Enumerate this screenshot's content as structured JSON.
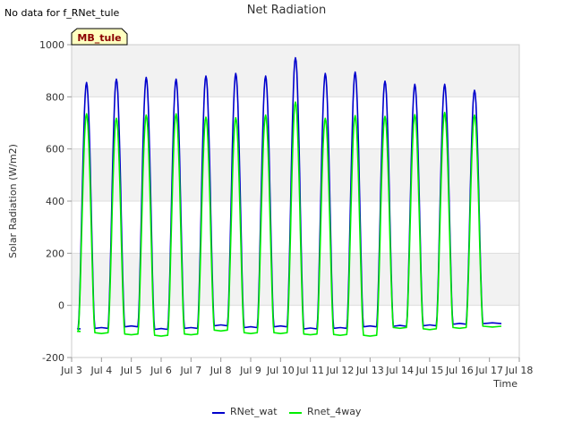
{
  "chart_data": {
    "type": "line",
    "title": "Net Radiation",
    "note": "No data for f_RNet_tule",
    "badge": "MB_tule",
    "xlabel": "Time",
    "ylabel": "Solar Radiation (W/m2)",
    "xlim": [
      3,
      18
    ],
    "ylim": [
      -200,
      1000
    ],
    "x_ticks": [
      3,
      4,
      5,
      6,
      7,
      8,
      9,
      10,
      11,
      12,
      13,
      14,
      15,
      16,
      17,
      18
    ],
    "x_tick_labels": [
      "Jul 3",
      "Jul 4",
      "Jul 5",
      "Jul 6",
      "Jul 7",
      "Jul 8",
      "Jul 9",
      "Jul 10",
      "Jul 11",
      "Jul 12",
      "Jul 13",
      "Jul 14",
      "Jul 15",
      "Jul 16",
      "Jul 17",
      "Jul 18"
    ],
    "y_ticks": [
      -200,
      0,
      200,
      400,
      600,
      800,
      1000
    ],
    "y_tick_labels": [
      "-200",
      "0",
      "200",
      "400",
      "600",
      "800",
      "1000"
    ],
    "grid": true,
    "legend_position": "bottom",
    "series": [
      {
        "name": "RNet_wat",
        "color": "#0000cc",
        "day_starts": [
          3.5,
          4.5,
          5.5,
          6.5,
          7.5,
          8.5,
          9.5,
          10.5,
          11.5,
          12.5,
          13.5,
          14.5,
          15.5,
          16.5
        ],
        "daily_peaks": [
          855,
          868,
          875,
          868,
          880,
          890,
          880,
          950,
          890,
          895,
          860,
          848,
          848,
          825
        ],
        "night_values": [
          -90,
          -88,
          -82,
          -92,
          -88,
          -78,
          -85,
          -82,
          -90,
          -88,
          -82,
          -80,
          -78,
          -72,
          -70
        ]
      },
      {
        "name": "Rnet_4way",
        "color": "#00ee00",
        "day_starts": [
          3.5,
          4.5,
          5.5,
          6.5,
          7.5,
          8.5,
          9.5,
          10.5,
          11.5,
          12.5,
          13.5,
          14.5,
          15.5,
          16.5
        ],
        "daily_peaks": [
          735,
          718,
          730,
          735,
          722,
          720,
          730,
          780,
          718,
          728,
          725,
          732,
          740,
          730
        ],
        "night_values": [
          -100,
          -105,
          -110,
          -115,
          -110,
          -95,
          -105,
          -105,
          -110,
          -112,
          -115,
          -85,
          -90,
          -85,
          -80
        ]
      }
    ]
  }
}
